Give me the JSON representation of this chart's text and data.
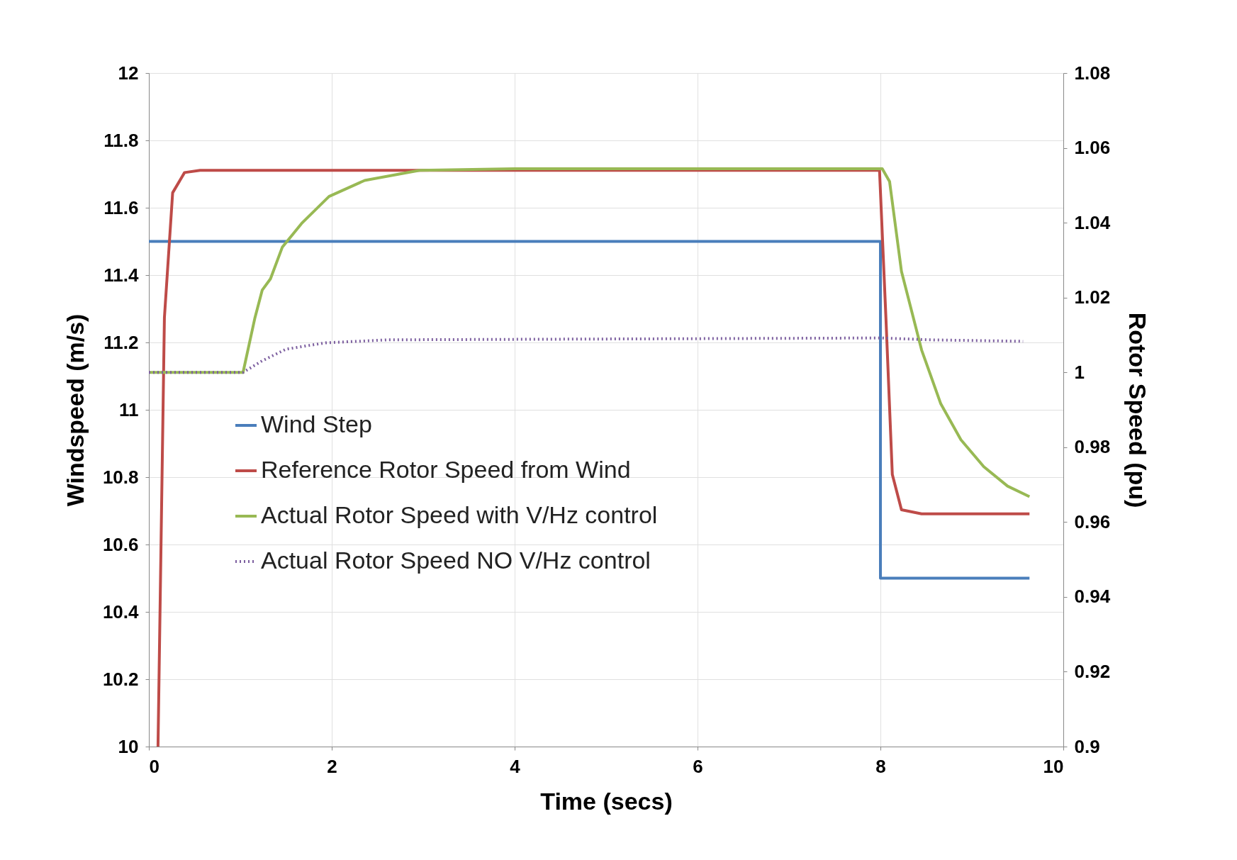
{
  "chart_data": {
    "type": "line",
    "xlabel": "Time (secs)",
    "ylabel": "Windspeed (m/s)",
    "y2label": "Rotor Speed (pu)",
    "xlim": [
      0,
      10
    ],
    "xticks": [
      0,
      2,
      4,
      6,
      8,
      10
    ],
    "ylim": [
      10,
      12
    ],
    "yticks": [
      10,
      10.2,
      10.4,
      10.6,
      10.8,
      11,
      11.2,
      11.4,
      11.6,
      11.8,
      12
    ],
    "y2lim": [
      0.9,
      1.08
    ],
    "y2ticks": [
      {
        "value": 0.9,
        "label": "0.9"
      },
      0.92,
      0.94,
      0.96,
      0.98,
      {
        "value": 1,
        "label": "1"
      },
      1.02,
      1.04,
      1.06,
      1.08
    ],
    "grid": true,
    "legend": "left",
    "series": [
      {
        "name": "Wind Step",
        "color": "#4a7ebb",
        "x": [
          0,
          8,
          8,
          9.63
        ],
        "values": [
          11.5,
          11.5,
          10.5,
          10.5
        ]
      },
      {
        "name": "Reference Rotor Speed from Wind",
        "color": "#be4b48",
        "axis": "y2",
        "x": [
          0.1,
          0.17,
          0.26,
          0.39,
          0.56,
          7.99,
          8.06,
          8.13,
          8.23,
          8.45,
          9.63
        ],
        "values": [
          0.9,
          1.0146,
          1.048,
          1.0534,
          1.054,
          1.054,
          1.0146,
          0.9727,
          0.9633,
          0.9622,
          0.9622
        ]
      },
      {
        "name": "Actual Rotor Speed with V/Hz control",
        "color": "#98b954",
        "axis": "y2",
        "x": [
          0,
          1.03,
          1.16,
          1.24,
          1.33,
          1.46,
          1.67,
          1.97,
          2.36,
          2.96,
          4,
          8.02,
          8.1,
          8.23,
          8.45,
          8.66,
          8.88,
          9.13,
          9.39,
          9.63
        ],
        "values": [
          1.0,
          1.0,
          1.0146,
          1.022,
          1.025,
          1.0335,
          1.0398,
          1.047,
          1.0513,
          1.054,
          1.0544,
          1.0544,
          1.051,
          1.027,
          1.006,
          0.9916,
          0.982,
          0.9748,
          0.9696,
          0.9668
        ]
      },
      {
        "name": "Actual Rotor Speed NO V/Hz control",
        "color": "#7d60a0",
        "axis": "y2",
        "line_style": "dotted",
        "x": [
          0,
          1.03,
          1.24,
          1.5,
          1.93,
          2.62,
          8.02,
          8.53,
          9.56
        ],
        "values": [
          1.0,
          1.0,
          1.0031,
          1.0062,
          1.0079,
          1.0087,
          1.0092,
          1.0087,
          1.0083
        ]
      }
    ]
  }
}
